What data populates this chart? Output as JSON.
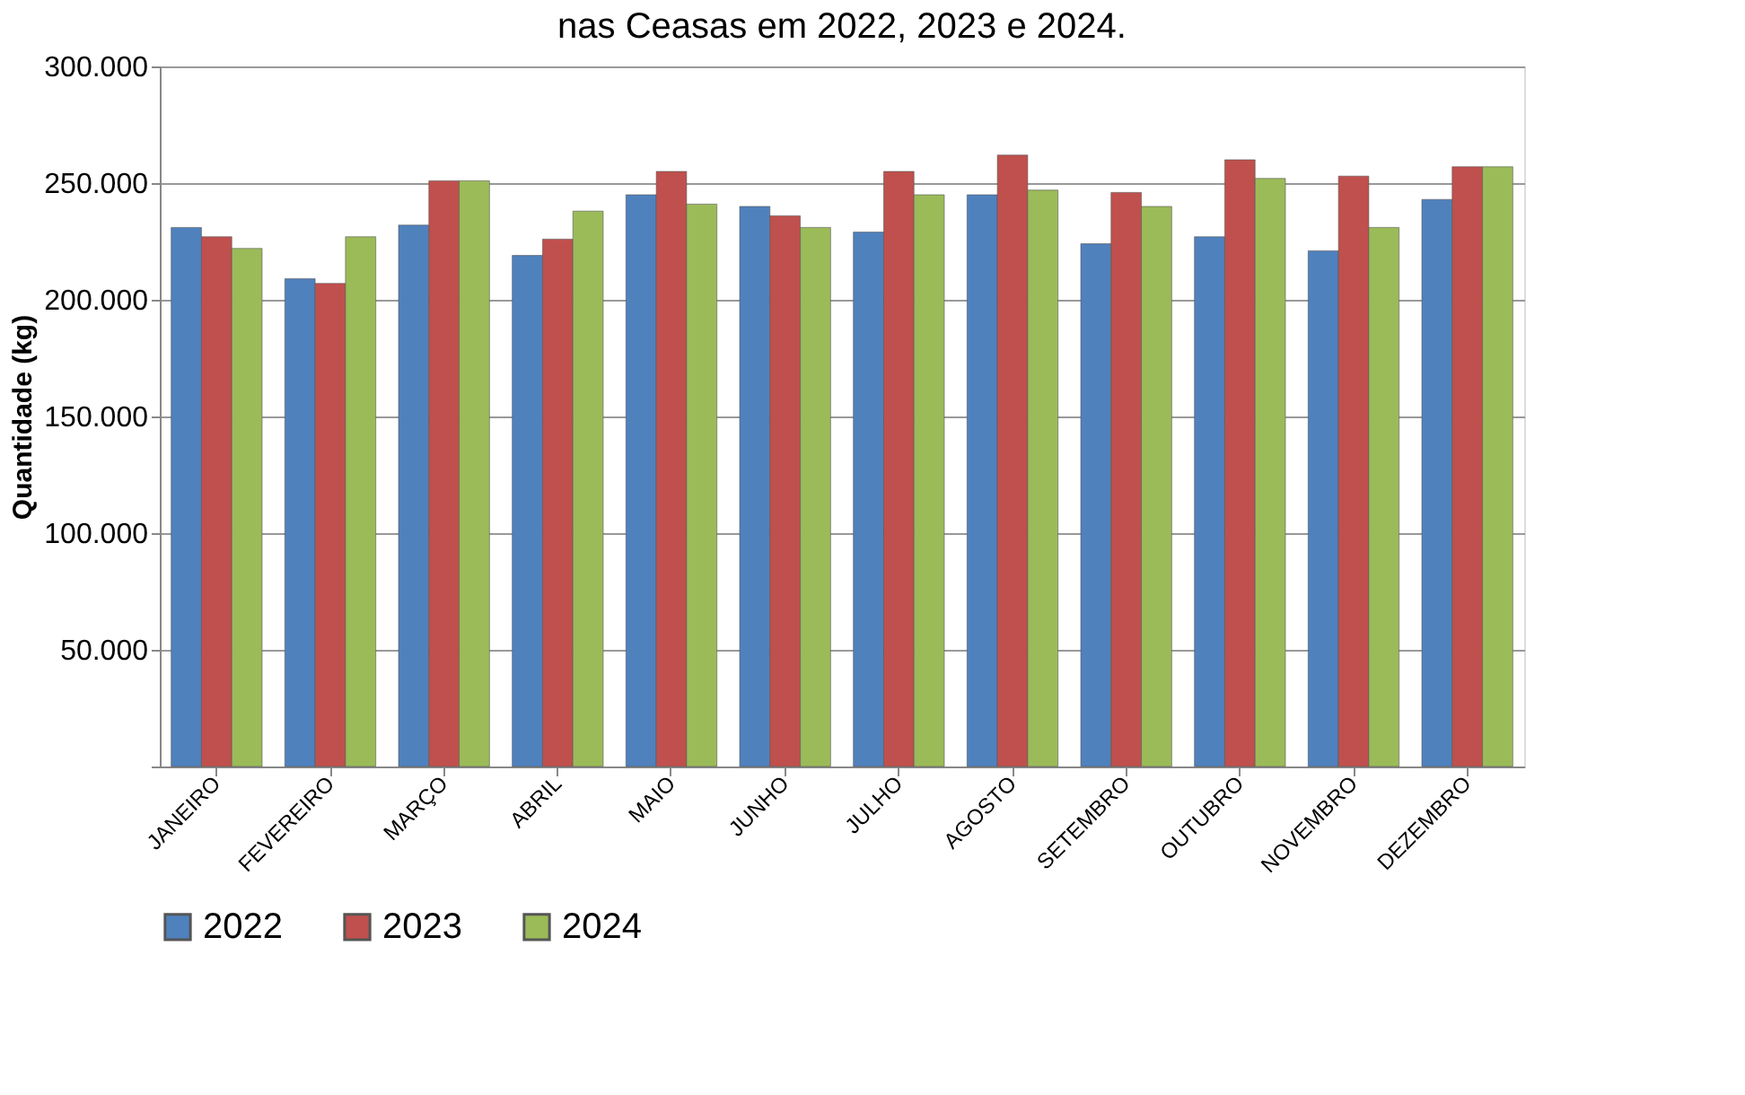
{
  "chart_data": {
    "type": "bar",
    "title": "nas Ceasas em 2022, 2023 e 2024.",
    "ylabel": "Quantidade (kg)",
    "categories": [
      "JANEIRO",
      "FEVEREIRO",
      "MARÇO",
      "ABRIL",
      "MAIO",
      "JUNHO",
      "JULHO",
      "AGOSTO",
      "SETEMBRO",
      "OUTUBRO",
      "NOVEMBRO",
      "DEZEMBRO"
    ],
    "series": [
      {
        "name": "2022",
        "color": "#4f81bd",
        "values": [
          231000,
          209000,
          232000,
          219000,
          245000,
          240000,
          229000,
          245000,
          224000,
          227000,
          221000,
          243000
        ]
      },
      {
        "name": "2023",
        "color": "#c0504d",
        "values": [
          227000,
          207000,
          251000,
          226000,
          255000,
          236000,
          255000,
          262000,
          246000,
          260000,
          253000,
          257000
        ]
      },
      {
        "name": "2024",
        "color": "#9bbb59",
        "values": [
          222000,
          227000,
          251000,
          238000,
          241000,
          231000,
          245000,
          247000,
          240000,
          252000,
          231000,
          257000
        ]
      }
    ],
    "ylim": [
      0,
      300000
    ],
    "yticks": [
      {
        "value": 0,
        "label": null
      },
      {
        "value": 50000,
        "label": "50.000"
      },
      {
        "value": 100000,
        "label": "100.000"
      },
      {
        "value": 150000,
        "label": "150.000"
      },
      {
        "value": 200000,
        "label": "200.000"
      },
      {
        "value": 250000,
        "label": "250.000"
      },
      {
        "value": 300000,
        "label": "300.000"
      }
    ],
    "grid": "y",
    "legend": "bottom"
  }
}
